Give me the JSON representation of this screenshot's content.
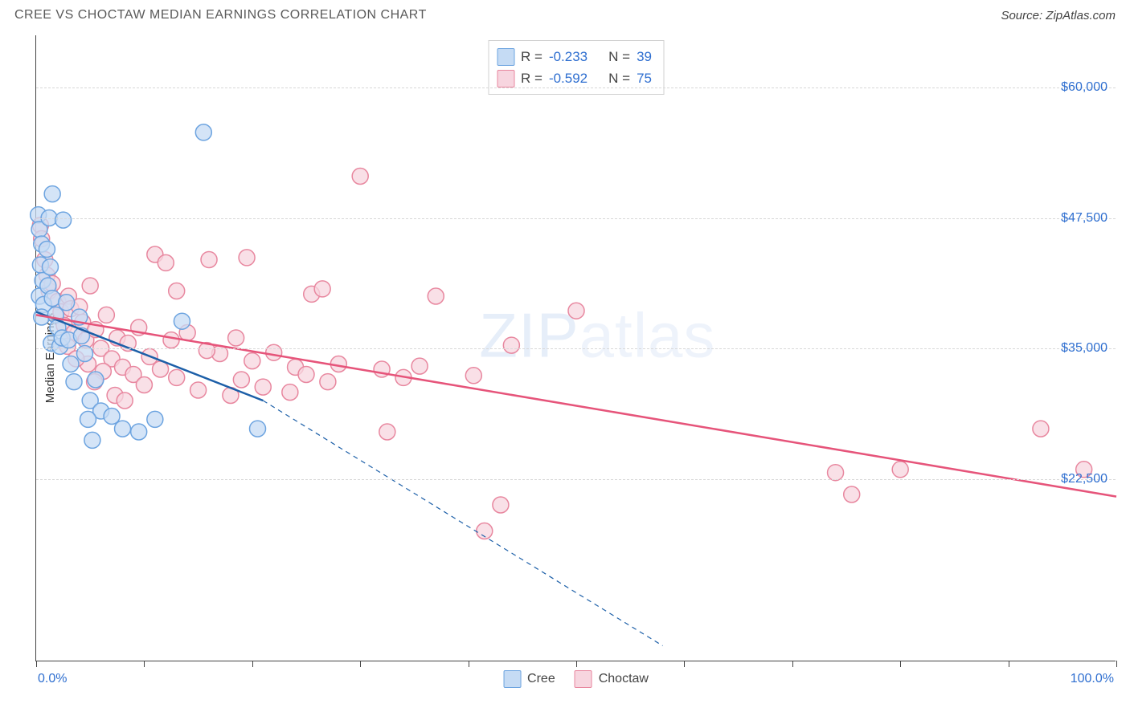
{
  "title": "CREE VS CHOCTAW MEDIAN EARNINGS CORRELATION CHART",
  "source": "Source: ZipAtlas.com",
  "ylabel": "Median Earnings",
  "watermark_zip": "ZIP",
  "watermark_atlas": "atlas",
  "chart": {
    "type": "scatter",
    "background_color": "#ffffff",
    "grid_color": "#d8d8d8",
    "axis_color": "#444444",
    "text_color": "#5a5a5a",
    "value_color": "#2f6fd0",
    "xlim": [
      0,
      100
    ],
    "ylim": [
      5000,
      65000
    ],
    "xticks": [
      0,
      10,
      20,
      30,
      40,
      50,
      60,
      70,
      80,
      90,
      100
    ],
    "yticks": [
      22500,
      35000,
      47500,
      60000
    ],
    "ytick_labels": [
      "$22,500",
      "$35,000",
      "$47,500",
      "$60,000"
    ],
    "xaxis_left_label": "0.0%",
    "xaxis_right_label": "100.0%",
    "point_radius": 10,
    "point_stroke_width": 1.5,
    "trend_line_width": 2,
    "series": [
      {
        "name": "Cree",
        "color_fill": "#c5dbf4",
        "color_stroke": "#6da4e0",
        "trend_color": "#1c5fa8",
        "R": "-0.233",
        "N": "39",
        "trend_solid": {
          "x1": 0,
          "y1": 38500,
          "x2": 21,
          "y2": 30000
        },
        "trend_dash": {
          "x1": 21,
          "y1": 30000,
          "x2": 58,
          "y2": 6500
        },
        "points": [
          [
            0.2,
            47800
          ],
          [
            0.3,
            46400
          ],
          [
            0.5,
            45000
          ],
          [
            0.4,
            43000
          ],
          [
            0.6,
            41500
          ],
          [
            0.3,
            40000
          ],
          [
            0.7,
            39200
          ],
          [
            0.5,
            38000
          ],
          [
            1.2,
            47500
          ],
          [
            1.0,
            44500
          ],
          [
            1.3,
            42800
          ],
          [
            1.1,
            41000
          ],
          [
            1.5,
            39800
          ],
          [
            1.8,
            38200
          ],
          [
            1.4,
            35500
          ],
          [
            2.0,
            37000
          ],
          [
            2.2,
            35200
          ],
          [
            2.4,
            36000
          ],
          [
            2.8,
            39400
          ],
          [
            3.0,
            35800
          ],
          [
            3.2,
            33500
          ],
          [
            3.5,
            31800
          ],
          [
            1.5,
            49800
          ],
          [
            2.5,
            47300
          ],
          [
            4.0,
            38000
          ],
          [
            4.2,
            36200
          ],
          [
            4.5,
            34500
          ],
          [
            5.0,
            30000
          ],
          [
            5.5,
            32000
          ],
          [
            6.0,
            29000
          ],
          [
            7.0,
            28500
          ],
          [
            8.0,
            27300
          ],
          [
            9.5,
            27000
          ],
          [
            11.0,
            28200
          ],
          [
            13.5,
            37600
          ],
          [
            15.5,
            55700
          ],
          [
            20.5,
            27300
          ],
          [
            4.8,
            28200
          ],
          [
            5.2,
            26200
          ]
        ]
      },
      {
        "name": "Choctaw",
        "color_fill": "#f7d5df",
        "color_stroke": "#e8879f",
        "trend_color": "#e6547a",
        "R": "-0.592",
        "N": "75",
        "trend_solid": {
          "x1": 0,
          "y1": 38200,
          "x2": 100,
          "y2": 20800
        },
        "trend_dash": null,
        "points": [
          [
            0.4,
            46800
          ],
          [
            0.5,
            45500
          ],
          [
            0.8,
            43500
          ],
          [
            1.0,
            42000
          ],
          [
            1.2,
            40500
          ],
          [
            1.5,
            41200
          ],
          [
            2.0,
            39500
          ],
          [
            2.3,
            38500
          ],
          [
            2.6,
            37200
          ],
          [
            3.0,
            40000
          ],
          [
            3.2,
            38800
          ],
          [
            3.5,
            36500
          ],
          [
            4.0,
            39000
          ],
          [
            4.3,
            37500
          ],
          [
            4.6,
            35800
          ],
          [
            5.0,
            41000
          ],
          [
            5.5,
            36800
          ],
          [
            6.0,
            35000
          ],
          [
            6.5,
            38200
          ],
          [
            7.0,
            34000
          ],
          [
            7.5,
            36000
          ],
          [
            8.0,
            33200
          ],
          [
            8.5,
            35500
          ],
          [
            9.0,
            32500
          ],
          [
            9.5,
            37000
          ],
          [
            10.0,
            31500
          ],
          [
            10.5,
            34200
          ],
          [
            11.0,
            44000
          ],
          [
            11.5,
            33000
          ],
          [
            12.0,
            43200
          ],
          [
            12.5,
            35800
          ],
          [
            13.0,
            32200
          ],
          [
            14.0,
            36500
          ],
          [
            15.0,
            31000
          ],
          [
            16.0,
            43500
          ],
          [
            17.0,
            34500
          ],
          [
            18.0,
            30500
          ],
          [
            18.5,
            36000
          ],
          [
            19.0,
            32000
          ],
          [
            19.5,
            43700
          ],
          [
            20.0,
            33800
          ],
          [
            21.0,
            31300
          ],
          [
            22.0,
            34600
          ],
          [
            23.5,
            30800
          ],
          [
            24.0,
            33200
          ],
          [
            25.0,
            32500
          ],
          [
            25.5,
            40200
          ],
          [
            26.5,
            40700
          ],
          [
            27.0,
            31800
          ],
          [
            28.0,
            33500
          ],
          [
            30.0,
            51500
          ],
          [
            32.0,
            33000
          ],
          [
            34.0,
            32200
          ],
          [
            35.5,
            33300
          ],
          [
            37.0,
            40000
          ],
          [
            40.5,
            32400
          ],
          [
            44.0,
            35300
          ],
          [
            32.5,
            27000
          ],
          [
            41.5,
            17500
          ],
          [
            43.0,
            20000
          ],
          [
            50.0,
            38600
          ],
          [
            74.0,
            23100
          ],
          [
            75.5,
            21000
          ],
          [
            80.0,
            23400
          ],
          [
            93.0,
            27300
          ],
          [
            97.0,
            23400
          ],
          [
            13.0,
            40500
          ],
          [
            6.2,
            32800
          ],
          [
            7.3,
            30500
          ],
          [
            8.2,
            30000
          ],
          [
            4.8,
            33500
          ],
          [
            5.4,
            31800
          ],
          [
            2.9,
            35200
          ],
          [
            3.7,
            34000
          ],
          [
            15.8,
            34800
          ]
        ]
      }
    ]
  }
}
